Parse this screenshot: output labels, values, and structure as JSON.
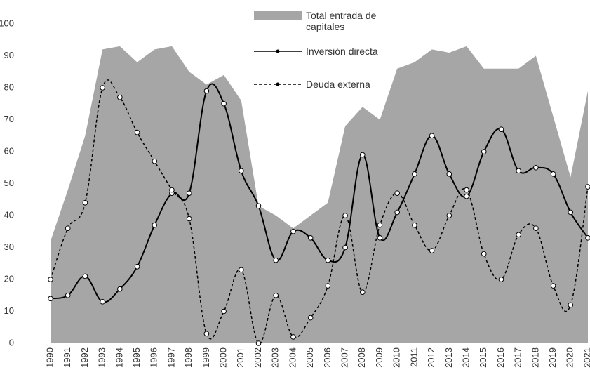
{
  "chart_data": {
    "type": "line",
    "categories": [
      "1990",
      "1991",
      "1992",
      "1993",
      "1994",
      "1995",
      "1996",
      "1997",
      "1998",
      "1999",
      "2000",
      "2001",
      "2002",
      "2003",
      "2004",
      "2005",
      "2006",
      "2007",
      "2008",
      "2009",
      "2010",
      "2011",
      "2012",
      "2013",
      "2014",
      "2015",
      "2016",
      "2017",
      "2018",
      "2019",
      "2020",
      "2021"
    ],
    "series": [
      {
        "name": "Total entrada de capitales",
        "style": "area",
        "color": "#a6a6a6",
        "values": [
          32,
          48,
          65,
          92,
          93,
          88,
          92,
          93,
          85,
          81,
          84,
          76,
          43,
          40,
          36,
          40,
          44,
          68,
          74,
          70,
          86,
          88,
          92,
          91,
          93,
          86,
          86,
          86,
          90,
          71,
          52,
          79
        ]
      },
      {
        "name": "Inversión directa",
        "style": "solid",
        "color": "#000000",
        "values": [
          14,
          15,
          21,
          13,
          17,
          24,
          37,
          47,
          47,
          79,
          75,
          54,
          43,
          26,
          35,
          33,
          26,
          30,
          59,
          33,
          41,
          53,
          65,
          53,
          46,
          60,
          67,
          54,
          55,
          53,
          41,
          33
        ]
      },
      {
        "name": "Deuda externa",
        "style": "dashed",
        "color": "#000000",
        "values": [
          20,
          36,
          44,
          80,
          77,
          66,
          57,
          48,
          39,
          3,
          10,
          23,
          0,
          15,
          2,
          8,
          18,
          40,
          16,
          37,
          47,
          37,
          29,
          40,
          48,
          28,
          20,
          34,
          36,
          18,
          12,
          49
        ]
      }
    ],
    "ylim": [
      0,
      100
    ],
    "yticks": [
      0,
      10,
      20,
      30,
      40,
      50,
      60,
      70,
      80,
      90,
      100
    ]
  }
}
